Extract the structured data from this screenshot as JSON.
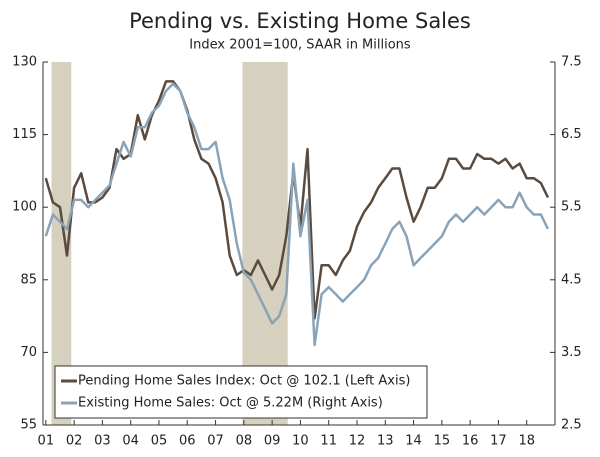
{
  "chart_data": {
    "type": "line",
    "title": "Pending vs. Existing Home Sales",
    "subtitle": "Index 2001=100, SAAR in Millions",
    "x": [
      1,
      1.25,
      1.5,
      1.75,
      2,
      2.25,
      2.5,
      2.75,
      3,
      3.25,
      3.5,
      3.75,
      4,
      4.25,
      4.5,
      4.75,
      5,
      5.25,
      5.5,
      5.75,
      6,
      6.25,
      6.5,
      6.75,
      7,
      7.25,
      7.5,
      7.75,
      8,
      8.25,
      8.5,
      8.75,
      9,
      9.25,
      9.5,
      9.75,
      10,
      10.25,
      10.5,
      10.75,
      11,
      11.25,
      11.5,
      11.75,
      12,
      12.25,
      12.5,
      12.75,
      13,
      13.25,
      13.5,
      13.75,
      14,
      14.25,
      14.5,
      14.75,
      15,
      15.25,
      15.5,
      15.75,
      16,
      16.25,
      16.5,
      16.75,
      17,
      17.25,
      17.5,
      17.75,
      18,
      18.25,
      18.5,
      18.75
    ],
    "series": [
      {
        "name": "Pending Home Sales Index: Oct @ 102.1 (Left Axis)",
        "color": "#5b4a3e",
        "axis": "y",
        "values": [
          106,
          101,
          100,
          90,
          104,
          107,
          101,
          101,
          102,
          104,
          112,
          110,
          111,
          119,
          114,
          119,
          122,
          126,
          126,
          124,
          120,
          114,
          110,
          109,
          106,
          101,
          90,
          86,
          87,
          86,
          89,
          86,
          83,
          86,
          94,
          107,
          96,
          112,
          77,
          88,
          88,
          86,
          89,
          91,
          96,
          99,
          101,
          104,
          106,
          108,
          108,
          102,
          97,
          100,
          104,
          104,
          106,
          110,
          110,
          108,
          108,
          111,
          110,
          110,
          109,
          110,
          108,
          109,
          106,
          106,
          105,
          102
        ]
      },
      {
        "name": "Existing Home Sales: Oct @ 5.22M (Right Axis)",
        "color": "#8aa3b7",
        "axis": "y2",
        "values": [
          5.1,
          5.4,
          5.3,
          5.2,
          5.6,
          5.6,
          5.5,
          5.6,
          5.7,
          5.8,
          6.1,
          6.4,
          6.2,
          6.6,
          6.6,
          6.8,
          6.9,
          7.1,
          7.2,
          7.1,
          6.8,
          6.6,
          6.3,
          6.3,
          6.4,
          5.9,
          5.6,
          5.0,
          4.6,
          4.5,
          4.3,
          4.1,
          3.9,
          4.0,
          4.3,
          6.1,
          5.1,
          5.6,
          3.6,
          4.3,
          4.4,
          4.3,
          4.2,
          4.3,
          4.4,
          4.5,
          4.7,
          4.8,
          5.0,
          5.2,
          5.3,
          5.1,
          4.7,
          4.8,
          4.9,
          5.0,
          5.1,
          5.3,
          5.4,
          5.3,
          5.4,
          5.5,
          5.4,
          5.5,
          5.6,
          5.5,
          5.5,
          5.7,
          5.5,
          5.4,
          5.4,
          5.2
        ]
      }
    ],
    "shaded_periods": [
      [
        1.2,
        1.9
      ],
      [
        7.95,
        9.55
      ]
    ],
    "shade_color": "#d6d0bf",
    "xlim": [
      0.9,
      19.0
    ],
    "xticks": [
      {
        "value": 1,
        "label": "01"
      },
      {
        "value": 2,
        "label": "02"
      },
      {
        "value": 3,
        "label": "03"
      },
      {
        "value": 4,
        "label": "04"
      },
      {
        "value": 5,
        "label": "05"
      },
      {
        "value": 6,
        "label": "06"
      },
      {
        "value": 7,
        "label": "07"
      },
      {
        "value": 8,
        "label": "08"
      },
      {
        "value": 9,
        "label": "09"
      },
      10,
      11,
      12,
      13,
      14,
      15,
      16,
      17,
      18
    ],
    "ylim": [
      55,
      130
    ],
    "yticks": [
      55,
      70,
      85,
      100,
      115,
      130
    ],
    "y2lim": [
      2.5,
      7.5
    ],
    "y2ticks": [
      {
        "value": 2.5,
        "label": "2.5"
      },
      3.5,
      4.5,
      5.5,
      6.5,
      7.5
    ],
    "legend": "lower-left"
  }
}
